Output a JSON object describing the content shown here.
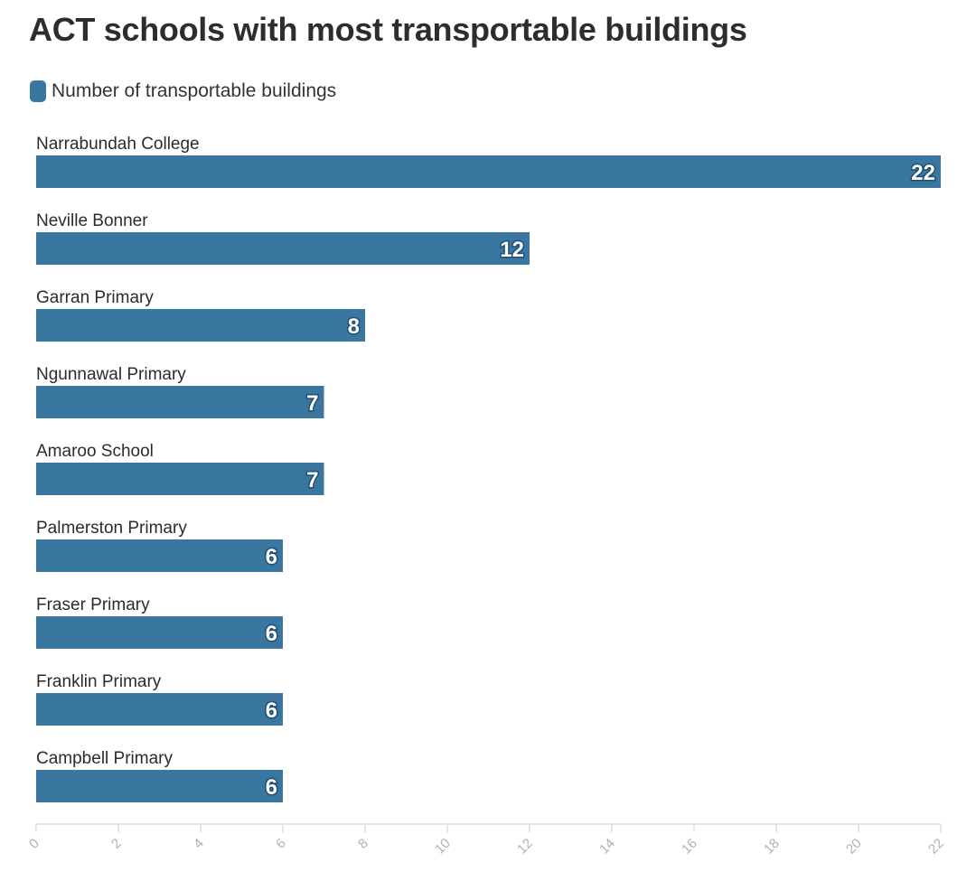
{
  "chart_data": {
    "type": "bar",
    "orientation": "horizontal",
    "title": "ACT schools with most transportable buildings",
    "legend_position": "top-left",
    "grid": false,
    "categories": [
      "Narrabundah College",
      "Neville Bonner",
      "Garran Primary",
      "Ngunnawal Primary",
      "Amaroo School",
      "Palmerston Primary",
      "Fraser Primary",
      "Franklin Primary",
      "Campbell Primary"
    ],
    "series": [
      {
        "name": "Number of transportable buildings",
        "values": [
          22,
          12,
          8,
          7,
          7,
          6,
          6,
          6,
          6
        ]
      }
    ],
    "xlim": [
      0,
      22
    ],
    "xticks": [
      "0",
      "2",
      "4",
      "6",
      "8",
      "10",
      "12",
      "14",
      "16",
      "18",
      "20",
      "22"
    ],
    "xlabel": "",
    "ylabel": "",
    "colors": {
      "bar": "#3a77a0",
      "value_label_outline": "#1e4f73",
      "axis": "#e2e6ea",
      "tick_label": "#aab2bb"
    }
  }
}
